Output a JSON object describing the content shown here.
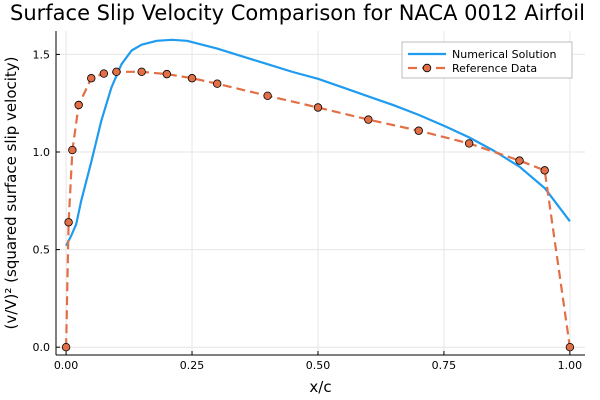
{
  "chart_data": {
    "type": "line",
    "title": "Surface Slip Velocity Comparison for NACA 0012 Airfoil",
    "xlabel": "x/c",
    "ylabel": "(v/V)² (squared surface slip velocity)",
    "xlim": [
      -0.02,
      1.03
    ],
    "ylim": [
      -0.04,
      1.62
    ],
    "xticks": [
      0.0,
      0.25,
      0.5,
      0.75,
      1.0
    ],
    "xtick_labels": [
      "0.00",
      "0.25",
      "0.50",
      "0.75",
      "1.00"
    ],
    "yticks": [
      0.0,
      0.5,
      1.0,
      1.5
    ],
    "ytick_labels": [
      "0.0",
      "0.5",
      "1.0",
      "1.5"
    ],
    "grid": true,
    "legend_position": "top-right",
    "series": [
      {
        "name": "Numerical Solution",
        "style": "solid-line",
        "color": "#1f9bef",
        "x": [
          0.0,
          0.01,
          0.02,
          0.03,
          0.05,
          0.07,
          0.09,
          0.11,
          0.13,
          0.15,
          0.18,
          0.21,
          0.24,
          0.27,
          0.3,
          0.35,
          0.4,
          0.45,
          0.5,
          0.55,
          0.6,
          0.65,
          0.7,
          0.75,
          0.8,
          0.85,
          0.9,
          0.95,
          1.0
        ],
        "y": [
          0.52,
          0.57,
          0.63,
          0.75,
          0.95,
          1.16,
          1.33,
          1.45,
          1.52,
          1.55,
          1.57,
          1.575,
          1.57,
          1.55,
          1.53,
          1.49,
          1.45,
          1.41,
          1.375,
          1.33,
          1.285,
          1.24,
          1.19,
          1.135,
          1.075,
          1.005,
          0.925,
          0.815,
          0.645
        ]
      },
      {
        "name": "Reference Data",
        "style": "dashed-line-markers",
        "color": "#e26f46",
        "x": [
          0.0,
          0.005,
          0.0125,
          0.025,
          0.05,
          0.075,
          0.1,
          0.15,
          0.2,
          0.25,
          0.3,
          0.4,
          0.5,
          0.6,
          0.7,
          0.8,
          0.9,
          0.95,
          1.0
        ],
        "y": [
          0.0,
          0.64,
          1.01,
          1.241,
          1.378,
          1.402,
          1.411,
          1.411,
          1.399,
          1.378,
          1.35,
          1.288,
          1.228,
          1.166,
          1.109,
          1.044,
          0.956,
          0.906,
          0.0
        ]
      }
    ]
  }
}
